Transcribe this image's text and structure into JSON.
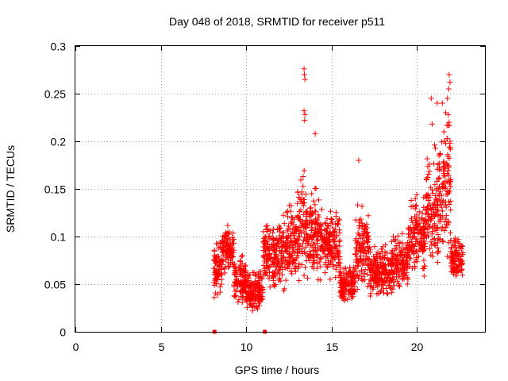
{
  "chart_data": {
    "type": "scatter",
    "title": "Day 048 of 2018, SRMTID for receiver p511",
    "xlabel": "GPS time / hours",
    "ylabel": "SRMTID / TECUs",
    "xlim": [
      0,
      24
    ],
    "ylim": [
      0,
      0.3
    ],
    "grid": true,
    "marker": "plus",
    "color": "#ff0000",
    "x_ticks": [
      0,
      5,
      10,
      15,
      20
    ],
    "x_tick_labels": [
      "0",
      "5",
      "10",
      "15",
      "20"
    ],
    "y_ticks": [
      0,
      0.05,
      0.1,
      0.15,
      0.2,
      0.25,
      0.3
    ],
    "y_tick_labels": [
      "0",
      "0.05",
      "0.1",
      "0.15",
      "0.2",
      "0.25",
      "0.3"
    ],
    "zero_markers_x": [
      8.15,
      11.1
    ],
    "series": [
      {
        "name": "p511",
        "profile": [
          {
            "t0": 8.1,
            "t1": 8.6,
            "lo": 0.03,
            "hi": 0.11
          },
          {
            "t0": 8.6,
            "t1": 9.3,
            "lo": 0.06,
            "hi": 0.12
          },
          {
            "t0": 9.3,
            "t1": 10.0,
            "lo": 0.025,
            "hi": 0.09
          },
          {
            "t0": 10.0,
            "t1": 11.0,
            "lo": 0.02,
            "hi": 0.07
          },
          {
            "t0": 11.0,
            "t1": 12.3,
            "lo": 0.04,
            "hi": 0.13
          },
          {
            "t0": 12.3,
            "t1": 13.0,
            "lo": 0.045,
            "hi": 0.15
          },
          {
            "t0": 13.0,
            "t1": 13.6,
            "lo": 0.04,
            "hi": 0.19
          },
          {
            "t0": 13.6,
            "t1": 14.4,
            "lo": 0.05,
            "hi": 0.17
          },
          {
            "t0": 14.4,
            "t1": 15.5,
            "lo": 0.05,
            "hi": 0.14
          },
          {
            "t0": 15.5,
            "t1": 16.4,
            "lo": 0.025,
            "hi": 0.08
          },
          {
            "t0": 16.4,
            "t1": 17.2,
            "lo": 0.04,
            "hi": 0.14
          },
          {
            "t0": 17.2,
            "t1": 18.5,
            "lo": 0.035,
            "hi": 0.1
          },
          {
            "t0": 18.5,
            "t1": 19.5,
            "lo": 0.04,
            "hi": 0.11
          },
          {
            "t0": 19.5,
            "t1": 20.5,
            "lo": 0.05,
            "hi": 0.16
          },
          {
            "t0": 20.5,
            "t1": 21.3,
            "lo": 0.06,
            "hi": 0.2
          },
          {
            "t0": 21.3,
            "t1": 22.0,
            "lo": 0.07,
            "hi": 0.25
          },
          {
            "t0": 22.0,
            "t1": 22.7,
            "lo": 0.05,
            "hi": 0.11
          }
        ],
        "spikes": [
          {
            "x": 13.4,
            "y": 0.276
          },
          {
            "x": 13.42,
            "y": 0.27
          },
          {
            "x": 13.45,
            "y": 0.265
          },
          {
            "x": 13.4,
            "y": 0.232
          },
          {
            "x": 13.45,
            "y": 0.228
          },
          {
            "x": 13.43,
            "y": 0.222
          },
          {
            "x": 14.05,
            "y": 0.208
          },
          {
            "x": 16.6,
            "y": 0.18
          },
          {
            "x": 20.85,
            "y": 0.245
          },
          {
            "x": 21.2,
            "y": 0.24
          },
          {
            "x": 21.5,
            "y": 0.24
          },
          {
            "x": 21.9,
            "y": 0.27
          },
          {
            "x": 21.95,
            "y": 0.262
          },
          {
            "x": 21.88,
            "y": 0.255
          },
          {
            "x": 21.8,
            "y": 0.245
          },
          {
            "x": 21.85,
            "y": 0.228
          },
          {
            "x": 21.9,
            "y": 0.22
          },
          {
            "x": 21.6,
            "y": 0.21
          },
          {
            "x": 21.7,
            "y": 0.23
          },
          {
            "x": 20.9,
            "y": 0.218
          },
          {
            "x": 21.05,
            "y": 0.196
          },
          {
            "x": 21.3,
            "y": 0.185
          },
          {
            "x": 21.95,
            "y": 0.2
          }
        ]
      }
    ]
  }
}
